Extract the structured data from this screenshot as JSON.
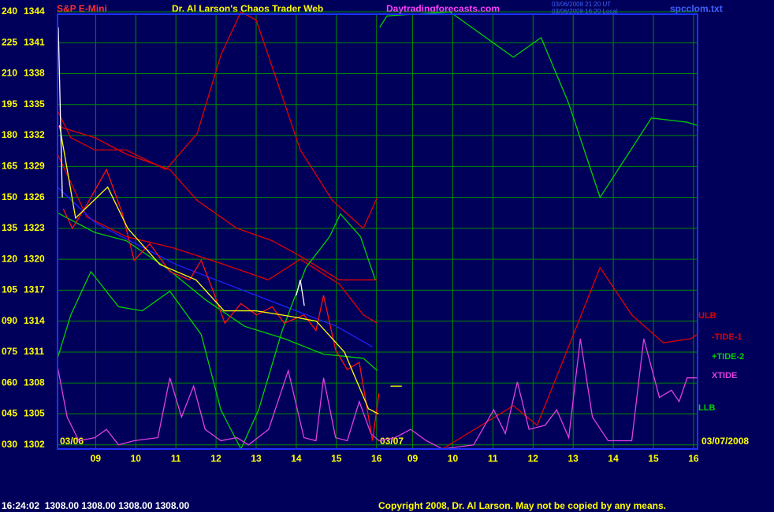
{
  "chart_data": {
    "type": "line",
    "title": "Dr. Al Larson's Chaos Trader Web",
    "symbol": "S&P E-Mini",
    "site": "Daytradingforecasts.com",
    "timestamps": [
      "03/06/2008 21:20 UT",
      "03/06/2008 16:20 Local"
    ],
    "file": "spcclom.txt",
    "date_labels": [
      "03/06",
      "03/07",
      "03/07/2008"
    ],
    "status": "16:24:02  1308.00 1308.00 1308.00 1308.00",
    "copyright": "Copyright 2008, Dr. Al Larson. May not be copied by any means.",
    "xlim": [
      8.05,
      24.0
    ],
    "xticks": [
      {
        "value": 9,
        "label": "09"
      },
      10,
      11,
      12,
      13,
      14,
      15,
      16,
      {
        "value": 16.9,
        "label": "09"
      },
      {
        "value": 17.9,
        "label": "10"
      },
      {
        "value": 18.9,
        "label": "11"
      },
      {
        "value": 19.9,
        "label": "12"
      },
      {
        "value": 20.9,
        "label": "13"
      },
      {
        "value": 21.9,
        "label": "14"
      },
      {
        "value": 22.9,
        "label": "15"
      },
      {
        "value": 23.9,
        "label": "16"
      }
    ],
    "ylim": [
      1301.6,
      1344
    ],
    "yticks": [
      1302,
      1305,
      1308,
      1311,
      1314,
      1317,
      1320,
      1323,
      1326,
      1329,
      1332,
      1335,
      1338,
      1341,
      1344
    ],
    "y2lim": [
      28,
      240
    ],
    "y2ticks": [
      {
        "value": 30,
        "label": "030"
      },
      {
        "value": 45,
        "label": "045"
      },
      {
        "value": 60,
        "label": "060"
      },
      {
        "value": 75,
        "label": "075"
      },
      {
        "value": 90,
        "label": "090"
      },
      105,
      120,
      135,
      150,
      165,
      180,
      195,
      210,
      225,
      240
    ],
    "grid": true,
    "series": [
      {
        "name": "ULB",
        "color": "#e00000",
        "x": [
          8.05,
          8.38,
          8.98,
          9.76,
          10.75,
          11.53,
          12.12,
          12.62,
          13.0,
          13.5,
          14.1,
          14.9,
          15.67,
          16.02
        ],
        "values": [
          1334.4,
          1331.8,
          1330.6,
          1330.6,
          1328.7,
          1332.2,
          1339.8,
          1344,
          1343.2,
          1337.5,
          1330.6,
          1325.7,
          1323.0,
          1326.0
        ]
      },
      {
        "color": "#e00000",
        "x": [
          8.05,
          8.98,
          9.76,
          10.85,
          11.53,
          12.52,
          13.4,
          14.1,
          15.07,
          16.02
        ],
        "values": [
          1332.9,
          1331.8,
          1330.2,
          1328.7,
          1325.7,
          1323.0,
          1321.8,
          1320.3,
          1318.0,
          1318.0
        ]
      },
      {
        "color": "#e00000",
        "x": [
          8.05,
          8.78,
          9.76,
          10.94,
          12.12,
          13.3,
          14.1,
          15.07,
          15.67,
          16.02
        ],
        "values": [
          1330.2,
          1324.1,
          1322.2,
          1321.1,
          1319.6,
          1318.0,
          1320.0,
          1317.6,
          1314.6,
          1313.8
        ]
      },
      {
        "name": "-TIDE-1",
        "color": "#e00000",
        "x": [
          17.64,
          19.41,
          20.0,
          20.59,
          21.57,
          22.36,
          23.15,
          23.84,
          23.98
        ],
        "values": [
          1301.6,
          1305.8,
          1303.9,
          1309.6,
          1319.2,
          1314.6,
          1311.9,
          1312.3,
          1312.7
        ]
      },
      {
        "color": "#2020ff",
        "x": [
          8.05,
          9,
          10,
          11,
          12,
          13,
          14,
          15,
          15.9
        ],
        "values": [
          1327.0,
          1323.5,
          1321.5,
          1319.5,
          1318.0,
          1316.5,
          1315.0,
          1313.5,
          1311.5
        ]
      },
      {
        "color": "#00d000",
        "x": [
          8.05,
          8.98,
          9.76,
          10.75,
          11.73,
          12.71,
          13.7,
          14.68,
          15.67,
          16.02
        ],
        "values": [
          1324.5,
          1322.6,
          1321.8,
          1319.2,
          1316.1,
          1313.5,
          1312.3,
          1310.8,
          1310.4,
          1309.2
        ]
      },
      {
        "name": "LLB",
        "color": "#00d000",
        "x": [
          8.05,
          8.38,
          8.88,
          9.57,
          10.16,
          10.85,
          11.63,
          12.12,
          12.62,
          13.06,
          13.65,
          14.24,
          14.83,
          15.1,
          15.6,
          15.97
        ],
        "values": [
          1310.4,
          1314.6,
          1318.8,
          1315.4,
          1315.0,
          1316.9,
          1312.7,
          1305.4,
          1301.6,
          1305.4,
          1313.1,
          1319.2,
          1322.2,
          1324.4,
          1322.2,
          1318.0
        ]
      },
      {
        "name": "+TIDE-2",
        "color": "#00d000",
        "x": [
          16.08,
          16.26,
          17.83,
          19.41,
          20.1,
          20.78,
          21.57,
          22.85,
          23.74,
          23.98
        ],
        "values": [
          1342.5,
          1343.6,
          1344,
          1339.6,
          1341.5,
          1335.2,
          1326.0,
          1333.7,
          1333.3,
          1333.0
        ]
      },
      {
        "name": "XTIDE",
        "color": "#e040e0",
        "x": [
          8.05,
          8.29,
          8.58,
          8.98,
          9.27,
          9.57,
          9.96,
          10.55,
          10.85,
          11.14,
          11.44,
          11.73,
          12.12,
          12.52,
          12.81,
          13.31,
          13.8,
          14.19,
          14.49,
          14.68,
          14.98,
          15.27,
          15.57,
          15.86,
          16.06,
          16.46,
          16.85,
          17.24,
          17.64,
          18.42,
          18.92,
          19.21,
          19.51,
          19.8,
          20.2,
          20.49,
          20.79,
          21.08,
          21.38,
          21.77,
          22.36,
          22.66,
          23.05,
          23.35,
          23.54,
          23.74,
          23.98
        ],
        "values": [
          1309.6,
          1304.7,
          1302.4,
          1302.7,
          1303.5,
          1302.0,
          1302.4,
          1302.7,
          1308.5,
          1304.7,
          1307.7,
          1303.5,
          1302.4,
          1302.7,
          1302.0,
          1303.5,
          1309.2,
          1302.7,
          1302.4,
          1308.5,
          1302.7,
          1302.4,
          1306.2,
          1303.1,
          1302.4,
          1302.7,
          1303.5,
          1302.4,
          1301.6,
          1302.0,
          1305.4,
          1303.1,
          1308.1,
          1303.5,
          1303.9,
          1305.4,
          1302.7,
          1312.3,
          1304.7,
          1302.4,
          1302.4,
          1312.3,
          1306.6,
          1307.3,
          1306.2,
          1308.5,
          1308.5
        ]
      },
      {
        "color": "#ff1010",
        "x": [
          8.19,
          8.42,
          8.78,
          9.27,
          9.66,
          9.96,
          10.35,
          10.85,
          11.34,
          11.63,
          11.93,
          12.22,
          12.62,
          13.01,
          13.4,
          13.7,
          14.19,
          14.49,
          14.68,
          14.98,
          15.27,
          15.57,
          15.77,
          15.9,
          16.06
        ],
        "values": [
          1324.9,
          1323.0,
          1325.3,
          1328.7,
          1324.5,
          1319.9,
          1321.5,
          1318.8,
          1318.0,
          1319.9,
          1316.9,
          1313.8,
          1315.7,
          1314.6,
          1315.4,
          1313.8,
          1314.6,
          1313.1,
          1316.5,
          1311.2,
          1309.3,
          1310.0,
          1305.4,
          1302.4,
          1307.0
        ]
      },
      {
        "color": "#ffff00",
        "x": [
          8.1,
          8.5,
          9.3,
          9.8,
          10.6,
          11.5,
          12.2,
          13,
          13.8,
          14.5,
          15.2,
          15.8,
          16.05
        ],
        "values": [
          1333,
          1324,
          1327,
          1323,
          1319.5,
          1318,
          1315,
          1315,
          1314.5,
          1314,
          1311,
          1305.5,
          1305
        ]
      },
      {
        "color": "#ffff00",
        "x": [
          16.35,
          16.63
        ],
        "values": [
          1307.7,
          1307.7
        ]
      },
      {
        "color": "#ffffff",
        "x": [
          8.07,
          8.12,
          8.17
        ],
        "values": [
          1342.5,
          1334,
          1326
        ]
      },
      {
        "color": "#ffffff",
        "x": [
          14.0,
          14.1,
          14.2
        ],
        "values": [
          1316.5,
          1318.0,
          1315.5
        ]
      }
    ]
  }
}
